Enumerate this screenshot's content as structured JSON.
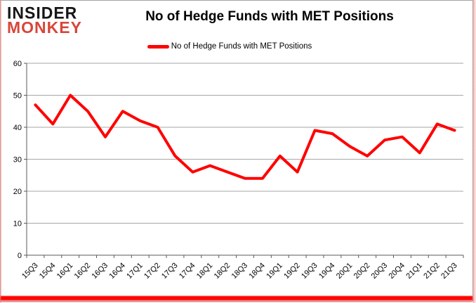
{
  "branding": {
    "logo_line1": "INSIDER",
    "logo_line2": "MONKEY",
    "logo_color_primary": "#161616",
    "logo_color_accent": "#d8463a"
  },
  "header": {
    "title": "No of Hedge Funds with MET Positions"
  },
  "legend": {
    "label": "No of Hedge Funds with MET Positions",
    "swatch_color": "#ff0000"
  },
  "chart_data": {
    "type": "line",
    "title": "No of Hedge Funds with MET Positions",
    "categories": [
      "15Q3",
      "15Q4",
      "16Q1",
      "16Q2",
      "16Q3",
      "16Q4",
      "17Q1",
      "17Q2",
      "17Q3",
      "17Q4",
      "18Q1",
      "18Q2",
      "18Q3",
      "18Q4",
      "19Q1",
      "19Q2",
      "19Q3",
      "19Q4",
      "20Q1",
      "20Q2",
      "20Q3",
      "20Q4",
      "21Q1",
      "21Q2",
      "21Q3"
    ],
    "series": [
      {
        "name": "No of Hedge Funds with MET Positions",
        "color": "#ff0000",
        "values": [
          47,
          41,
          50,
          45,
          37,
          45,
          42,
          40,
          31,
          26,
          28,
          26,
          24,
          24,
          31,
          26,
          39,
          38,
          34,
          31,
          36,
          37,
          32,
          41,
          39
        ]
      }
    ],
    "xlabel": "",
    "ylabel": "",
    "ylim": [
      0,
      60
    ],
    "yticks": [
      0,
      10,
      20,
      30,
      40,
      50,
      60
    ],
    "grid": true,
    "gridline_color": "#a6a6a6",
    "axis_color": "#595959",
    "legend_position": "top"
  }
}
